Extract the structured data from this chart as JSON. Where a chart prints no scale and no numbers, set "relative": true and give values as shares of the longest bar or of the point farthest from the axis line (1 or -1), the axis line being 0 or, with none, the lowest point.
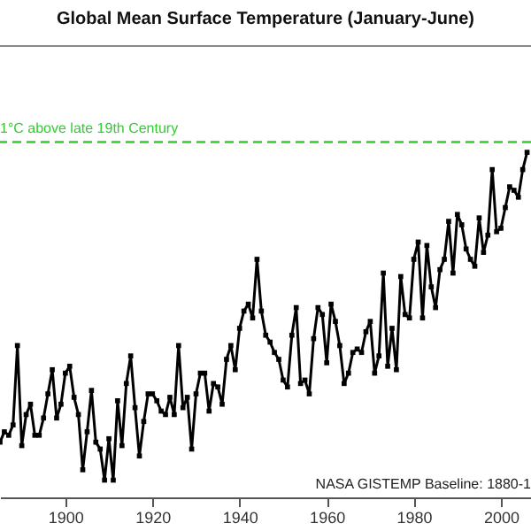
{
  "chart_data": {
    "type": "line",
    "title": "Global Mean Surface Temperature (January-June)",
    "relative": true,
    "x": [
      1885,
      1886,
      1887,
      1888,
      1889,
      1890,
      1891,
      1892,
      1893,
      1894,
      1895,
      1896,
      1897,
      1898,
      1899,
      1900,
      1901,
      1902,
      1903,
      1904,
      1905,
      1906,
      1907,
      1908,
      1909,
      1910,
      1911,
      1912,
      1913,
      1914,
      1915,
      1916,
      1917,
      1918,
      1919,
      1920,
      1921,
      1922,
      1923,
      1924,
      1925,
      1926,
      1927,
      1928,
      1929,
      1930,
      1931,
      1932,
      1933,
      1934,
      1935,
      1936,
      1937,
      1938,
      1939,
      1940,
      1941,
      1942,
      1943,
      1944,
      1945,
      1946,
      1947,
      1948,
      1949,
      1950,
      1951,
      1952,
      1953,
      1954,
      1955,
      1956,
      1957,
      1958,
      1959,
      1960,
      1961,
      1962,
      1963,
      1964,
      1965,
      1966,
      1967,
      1968,
      1969,
      1970,
      1971,
      1972,
      1973,
      1974,
      1975,
      1976,
      1977,
      1978,
      1979,
      1980,
      1981,
      1982,
      1983,
      1984,
      1985,
      1986,
      1987,
      1988,
      1989,
      1990,
      1991,
      1992,
      1993,
      1994,
      1995,
      1996,
      1997,
      1998,
      1999,
      2000,
      2001,
      2002,
      2003,
      2004,
      2005,
      2006
    ],
    "series": [
      {
        "color": "#000000",
        "values": [
          0.16,
          0.19,
          0.18,
          0.21,
          0.44,
          0.15,
          0.24,
          0.27,
          0.18,
          0.18,
          0.23,
          0.3,
          0.37,
          0.23,
          0.27,
          0.36,
          0.38,
          0.29,
          0.24,
          0.08,
          0.19,
          0.31,
          0.16,
          0.14,
          0.05,
          0.17,
          0.05,
          0.28,
          0.15,
          0.33,
          0.41,
          0.26,
          0.12,
          0.22,
          0.3,
          0.3,
          0.28,
          0.25,
          0.24,
          0.29,
          0.24,
          0.44,
          0.26,
          0.29,
          0.14,
          0.3,
          0.36,
          0.36,
          0.25,
          0.33,
          0.32,
          0.27,
          0.4,
          0.44,
          0.37,
          0.49,
          0.54,
          0.56,
          0.52,
          0.69,
          0.54,
          0.47,
          0.45,
          0.42,
          0.4,
          0.34,
          0.32,
          0.47,
          0.55,
          0.33,
          0.34,
          0.3,
          0.46,
          0.55,
          0.53,
          0.39,
          0.56,
          0.51,
          0.44,
          0.33,
          0.36,
          0.42,
          0.43,
          0.42,
          0.48,
          0.51,
          0.36,
          0.41,
          0.65,
          0.38,
          0.49,
          0.37,
          0.64,
          0.53,
          0.52,
          0.69,
          0.74,
          0.52,
          0.73,
          0.61,
          0.55,
          0.66,
          0.69,
          0.8,
          0.65,
          0.82,
          0.79,
          0.72,
          0.69,
          0.67,
          0.81,
          0.71,
          0.76,
          0.95,
          0.77,
          0.78,
          0.84,
          0.9,
          0.89,
          0.87,
          0.95,
          1.0
        ]
      }
    ],
    "xlim": [
      1885,
      2006.9
    ],
    "xticks": [
      1900,
      1920,
      1940,
      1960,
      1980,
      2000
    ],
    "marker": "square",
    "line_style": "solid",
    "grid": false,
    "ref_lines": [
      {
        "axis": "y",
        "value": 1.03,
        "label": "1°C above late 19th Century",
        "color": "#33cc33",
        "line_style": "dashed"
      }
    ],
    "annotations": [
      "NASA GISTEMP Baseline: 1880-1"
    ]
  }
}
